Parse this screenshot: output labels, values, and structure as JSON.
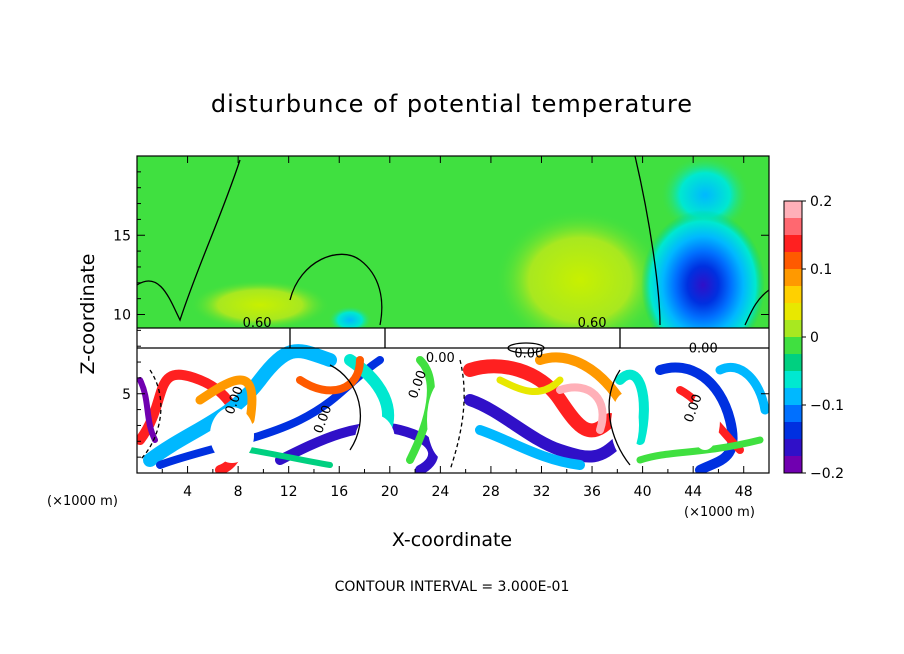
{
  "chart_data": {
    "type": "heatmap",
    "title": "disturbunce of potential temperature",
    "xlabel": "X-coordinate",
    "ylabel": "Z-coordinate",
    "x_units": "(×1000 m)",
    "xlim": [
      0,
      50
    ],
    "ylim": [
      0,
      20
    ],
    "x_ticks": [
      4,
      8,
      12,
      16,
      20,
      24,
      28,
      32,
      36,
      40,
      44,
      48
    ],
    "y_ticks": [
      5,
      10,
      15
    ],
    "colorbar": {
      "min": -0.2,
      "max": 0.2,
      "ticks": [
        "0.2",
        "0.1",
        "0",
        "−0.1",
        "−0.2"
      ],
      "tick_values": [
        0.2,
        0.1,
        0,
        -0.1,
        -0.2
      ],
      "colors": [
        "#ffb0b8",
        "#ff6870",
        "#ff2020",
        "#ff5a00",
        "#ff9900",
        "#ffd000",
        "#e8e800",
        "#a8e820",
        "#40e040",
        "#00d080",
        "#00e8d0",
        "#00b8ff",
        "#0070ff",
        "#0030e0",
        "#3010c8",
        "#7000b0"
      ]
    },
    "contour_labels": [
      "0.60",
      "0.60",
      "0.00",
      "0.00",
      "0.00",
      "0.00",
      "0.00",
      "0.00",
      "0.00"
    ],
    "contour_interval": "CONTOUR INTERVAL = 3.000E-01"
  }
}
